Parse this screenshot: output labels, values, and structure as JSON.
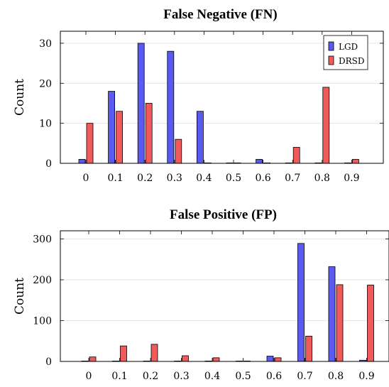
{
  "colors": {
    "LGD": "#5a5af0",
    "DRSD": "#f05a5a",
    "grid": "#e6e6e6"
  },
  "chart_data": [
    {
      "type": "bar",
      "title": "False Negative (FN)",
      "ylabel": "Count",
      "categories": [
        "0",
        "0.1",
        "0.2",
        "0.3",
        "0.4",
        "0.5",
        "0.6",
        "0.7",
        "0.8",
        "0.9"
      ],
      "series": [
        {
          "name": "LGD",
          "values": [
            1,
            18,
            30,
            28,
            13,
            0,
            1,
            0,
            0,
            0
          ]
        },
        {
          "name": "DRSD",
          "values": [
            10,
            13,
            15,
            6,
            0,
            0,
            0,
            4,
            19,
            1
          ]
        }
      ],
      "ylim": [
        0,
        33
      ],
      "yticks": [
        0,
        10,
        20,
        30
      ],
      "grid": true,
      "legend": "top-right"
    },
    {
      "type": "bar",
      "title": "False Positive (FP)",
      "ylabel": "Count",
      "categories": [
        "0",
        "0.1",
        "0.2",
        "0.3",
        "0.4",
        "0.5",
        "0.6",
        "0.7",
        "0.8",
        "0.9"
      ],
      "series": [
        {
          "name": "LGD",
          "values": [
            0,
            0,
            0,
            0,
            0,
            0,
            13,
            289,
            232,
            3
          ]
        },
        {
          "name": "DRSD",
          "values": [
            11,
            38,
            42,
            14,
            9,
            0,
            9,
            62,
            188,
            187
          ]
        }
      ],
      "ylim": [
        0,
        320
      ],
      "yticks": [
        0,
        100,
        200,
        300
      ],
      "grid": true,
      "legend": "none"
    }
  ]
}
